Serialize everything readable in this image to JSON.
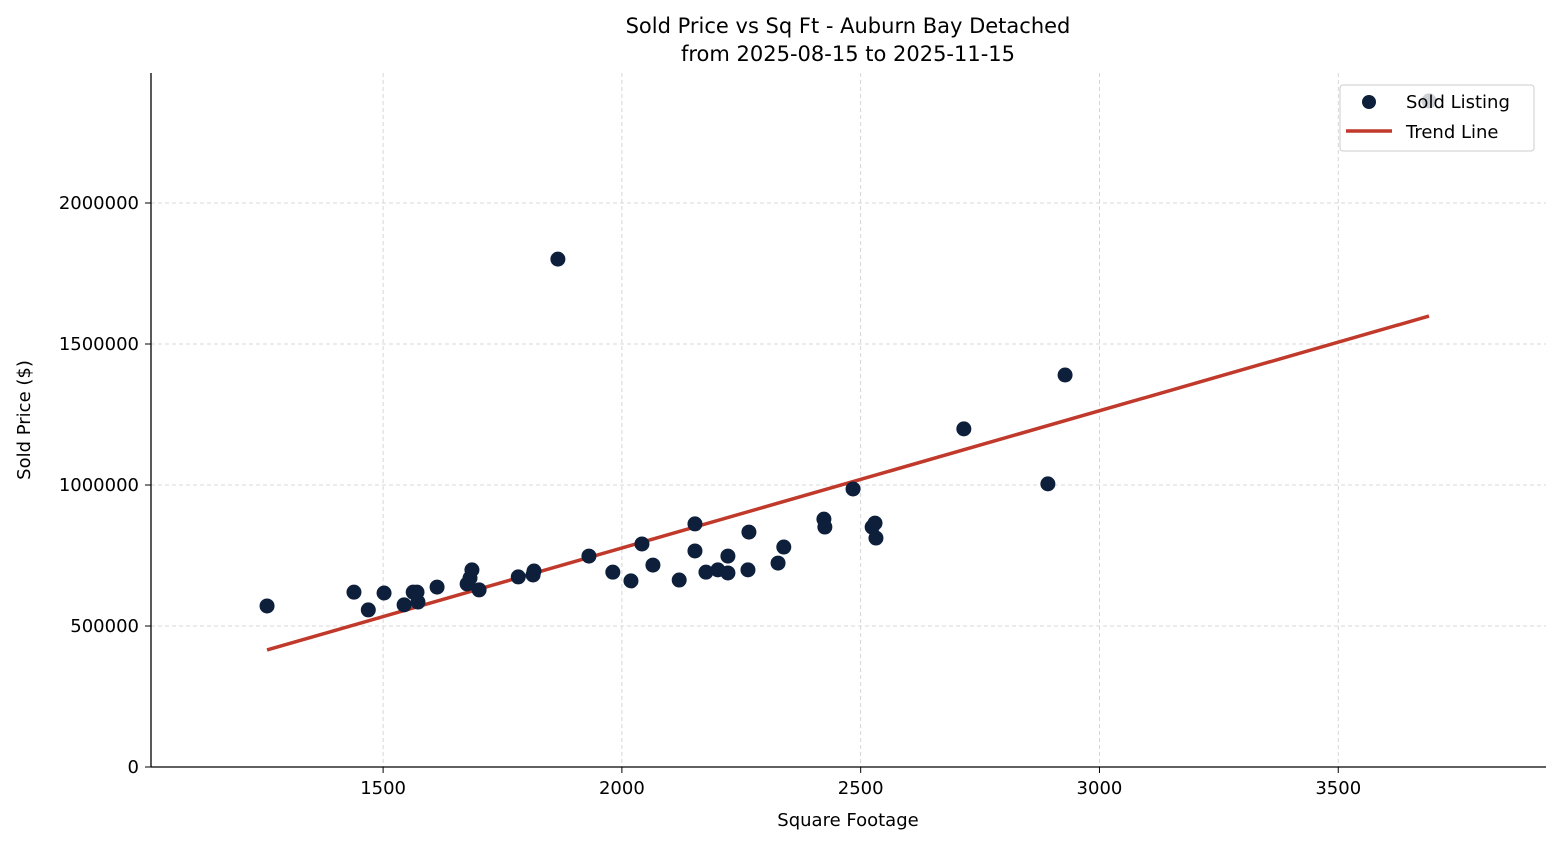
{
  "chart_data": {
    "type": "scatter",
    "title": "Sold Price vs Sq Ft - Auburn Bay Detached",
    "subtitle": "from 2025-08-15 to 2025-11-15",
    "xlabel": "Square Footage",
    "ylabel": "Sold Price ($)",
    "xlim": [
      1014,
      3935
    ],
    "ylim": [
      0,
      2461000
    ],
    "xticks": [
      1500,
      2000,
      2500,
      3000,
      3500
    ],
    "yticks": [
      0,
      500000,
      1000000,
      1500000,
      2000000
    ],
    "grid": true,
    "legend_placement": "top-right",
    "colors": {
      "points": "#0d1f3a",
      "trend": "#c0392b"
    },
    "series": [
      {
        "name": "Sold Listing",
        "type": "scatter",
        "x": [
          1257,
          1439,
          1469,
          1502,
          1544,
          1563,
          1573,
          1571,
          1613,
          1676,
          1682,
          1686,
          1701,
          1783,
          1816,
          1814,
          1866,
          1931,
          1981,
          2019,
          2042,
          2065,
          2120,
          2153,
          2153,
          2176,
          2201,
          2222,
          2222,
          2264,
          2266,
          2327,
          2339,
          2423,
          2425,
          2484,
          2524,
          2530,
          2532,
          2716,
          2892,
          2928,
          3690
        ],
        "y": [
          571000,
          620000,
          557000,
          617000,
          575000,
          620000,
          585000,
          620000,
          638000,
          649000,
          670000,
          699000,
          628000,
          674000,
          695000,
          681000,
          1801000,
          748000,
          691000,
          660000,
          791000,
          716000,
          663000,
          862000,
          766000,
          691000,
          699000,
          748000,
          688000,
          699000,
          833000,
          723000,
          780000,
          879000,
          851000,
          986000,
          851000,
          865000,
          812000,
          1199000,
          1004000,
          1390000,
          2362000
        ]
      },
      {
        "name": "Trend Line",
        "type": "line",
        "x": [
          1257,
          3690
        ],
        "y": [
          415000,
          1599000
        ]
      }
    ]
  }
}
